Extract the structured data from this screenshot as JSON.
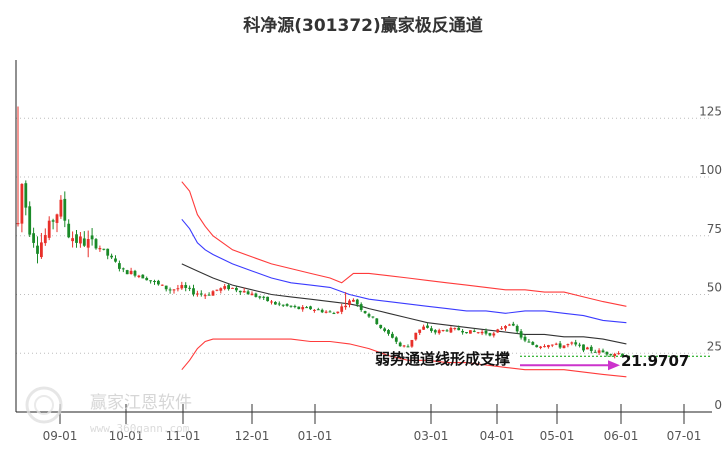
{
  "chart_data": {
    "type": "candlestick",
    "title": "科净源(301372)赢家极反通道",
    "y_ticks": [
      0,
      25,
      50,
      75,
      100,
      125
    ],
    "ylim": [
      0,
      135
    ],
    "x_ticks": [
      "09-01",
      "10-01",
      "11-01",
      "12-01",
      "01-01",
      "03-01",
      "04-01",
      "05-01",
      "06-01",
      "07-01"
    ],
    "grid": "horizontal dotted",
    "colors": {
      "up": "#e8302a",
      "down": "#1a8a28",
      "upper_band": "#ff3b3b",
      "inner_upper": "#3b3bff",
      "middle": "#333333",
      "lower_band": "#ff3b3b",
      "arrow": "#cc33cc",
      "support": "#00a000"
    },
    "price_path": [
      [
        0,
        80
      ],
      [
        1,
        97
      ],
      [
        3,
        78
      ],
      [
        5,
        70
      ],
      [
        7,
        75
      ],
      [
        9,
        82
      ],
      [
        11,
        88
      ],
      [
        13,
        76
      ],
      [
        15,
        73
      ],
      [
        18,
        72
      ],
      [
        21,
        70
      ],
      [
        24,
        65
      ],
      [
        27,
        60
      ],
      [
        30,
        59
      ],
      [
        33,
        57
      ],
      [
        36,
        54
      ],
      [
        39,
        52
      ],
      [
        42,
        53
      ],
      [
        45,
        51
      ],
      [
        48,
        50
      ],
      [
        51,
        52
      ],
      [
        54,
        53
      ],
      [
        57,
        52
      ],
      [
        60,
        50
      ],
      [
        63,
        48
      ],
      [
        66,
        46
      ],
      [
        69,
        45
      ],
      [
        72,
        44
      ],
      [
        75,
        44
      ],
      [
        78,
        43
      ],
      [
        81,
        42
      ],
      [
        84,
        46
      ],
      [
        86,
        48
      ],
      [
        88,
        44
      ],
      [
        90,
        41
      ],
      [
        92,
        38
      ],
      [
        94,
        34
      ],
      [
        96,
        32
      ],
      [
        98,
        28
      ],
      [
        100,
        28
      ],
      [
        102,
        34
      ],
      [
        104,
        36
      ],
      [
        107,
        34
      ],
      [
        110,
        35
      ],
      [
        113,
        35
      ],
      [
        116,
        34
      ],
      [
        119,
        34
      ],
      [
        122,
        33
      ],
      [
        124,
        36
      ],
      [
        126,
        38
      ],
      [
        128,
        34
      ],
      [
        130,
        30
      ],
      [
        133,
        28
      ],
      [
        136,
        29
      ],
      [
        139,
        28
      ],
      [
        142,
        29
      ],
      [
        145,
        27
      ],
      [
        148,
        26
      ],
      [
        151,
        25
      ],
      [
        154,
        25
      ],
      [
        156,
        24
      ]
    ],
    "upper_band": [
      [
        42,
        98
      ],
      [
        44,
        94
      ],
      [
        46,
        84
      ],
      [
        48,
        79
      ],
      [
        50,
        75
      ],
      [
        55,
        69
      ],
      [
        60,
        66
      ],
      [
        65,
        63
      ],
      [
        70,
        61
      ],
      [
        75,
        59
      ],
      [
        80,
        57
      ],
      [
        83,
        55
      ],
      [
        86,
        59
      ],
      [
        90,
        59
      ],
      [
        95,
        58
      ],
      [
        100,
        57
      ],
      [
        105,
        56
      ],
      [
        110,
        55
      ],
      [
        115,
        54
      ],
      [
        120,
        53
      ],
      [
        125,
        52
      ],
      [
        130,
        52
      ],
      [
        135,
        51
      ],
      [
        140,
        51
      ],
      [
        145,
        49
      ],
      [
        150,
        47
      ],
      [
        156,
        45
      ]
    ],
    "inner_upper": [
      [
        42,
        82
      ],
      [
        44,
        78
      ],
      [
        46,
        72
      ],
      [
        48,
        69
      ],
      [
        50,
        67
      ],
      [
        55,
        63
      ],
      [
        60,
        60
      ],
      [
        65,
        57
      ],
      [
        70,
        55
      ],
      [
        75,
        54
      ],
      [
        80,
        53
      ],
      [
        85,
        50
      ],
      [
        90,
        48
      ],
      [
        95,
        47
      ],
      [
        100,
        46
      ],
      [
        105,
        45
      ],
      [
        110,
        44
      ],
      [
        115,
        43
      ],
      [
        120,
        43
      ],
      [
        125,
        42
      ],
      [
        130,
        43
      ],
      [
        135,
        43
      ],
      [
        140,
        42
      ],
      [
        145,
        41
      ],
      [
        150,
        39
      ],
      [
        156,
        38
      ]
    ],
    "middle": [
      [
        42,
        63
      ],
      [
        46,
        60
      ],
      [
        50,
        57
      ],
      [
        55,
        54
      ],
      [
        60,
        52
      ],
      [
        65,
        50
      ],
      [
        70,
        49
      ],
      [
        75,
        48
      ],
      [
        80,
        47
      ],
      [
        85,
        46
      ],
      [
        88,
        45
      ],
      [
        90,
        44
      ],
      [
        95,
        42
      ],
      [
        100,
        40
      ],
      [
        105,
        38
      ],
      [
        110,
        37
      ],
      [
        115,
        36
      ],
      [
        120,
        35
      ],
      [
        125,
        34
      ],
      [
        130,
        33
      ],
      [
        135,
        33
      ],
      [
        140,
        32
      ],
      [
        145,
        32
      ],
      [
        150,
        31
      ],
      [
        156,
        29
      ]
    ],
    "lower_band": [
      [
        42,
        18
      ],
      [
        44,
        22
      ],
      [
        46,
        27
      ],
      [
        48,
        30
      ],
      [
        50,
        31
      ],
      [
        55,
        31
      ],
      [
        60,
        31
      ],
      [
        65,
        31
      ],
      [
        70,
        31
      ],
      [
        75,
        30
      ],
      [
        80,
        30
      ],
      [
        85,
        29
      ],
      [
        90,
        27
      ],
      [
        95,
        24
      ],
      [
        100,
        22
      ],
      [
        105,
        22
      ],
      [
        110,
        21
      ],
      [
        115,
        21
      ],
      [
        120,
        20
      ],
      [
        125,
        19
      ],
      [
        130,
        18
      ],
      [
        135,
        18
      ],
      [
        140,
        18
      ],
      [
        145,
        17
      ],
      [
        150,
        16
      ],
      [
        156,
        15
      ]
    ],
    "spike_top": 130,
    "annotation": {
      "text": "弱势通道线形成支撑",
      "value": "21.9707"
    }
  },
  "watermark": {
    "brand": "赢家江恩软件",
    "url": "www.360gann.com"
  }
}
